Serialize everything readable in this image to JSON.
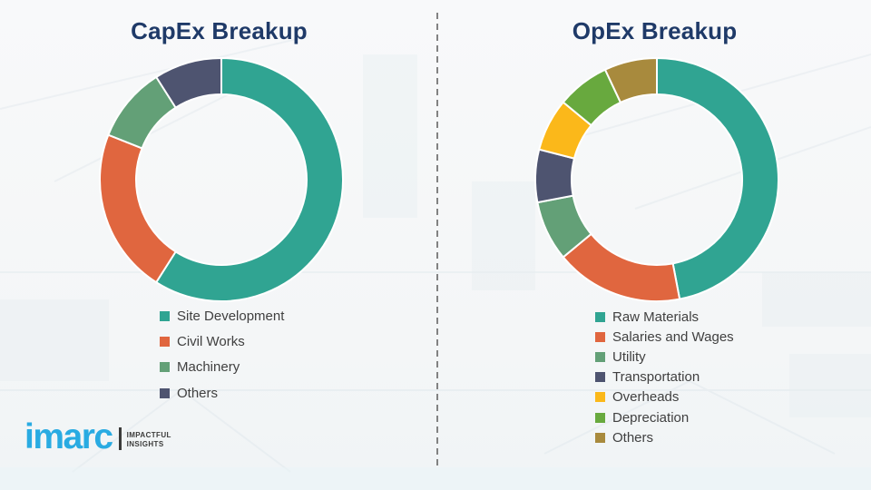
{
  "chart_data": [
    {
      "type": "pie",
      "subtype": "donut",
      "title": "CapEx Breakup",
      "categories": [
        "Site Development",
        "Civil Works",
        "Machinery",
        "Others"
      ],
      "values": [
        59,
        22,
        10,
        9
      ],
      "colors": [
        "#30A492",
        "#E0663F",
        "#63A077",
        "#4E5470"
      ],
      "legend_position": "bottom-left",
      "data_labels_shown": false
    },
    {
      "type": "pie",
      "subtype": "donut",
      "title": "OpEx Breakup",
      "categories": [
        "Raw Materials",
        "Salaries and Wages",
        "Utility",
        "Transportation",
        "Overheads",
        "Depreciation",
        "Others"
      ],
      "values": [
        47,
        17,
        8,
        7,
        7,
        7,
        7
      ],
      "colors": [
        "#30A492",
        "#E0663F",
        "#63A077",
        "#4E5470",
        "#FBB81A",
        "#68A93E",
        "#A88A3D"
      ],
      "legend_position": "bottom-left",
      "data_labels_shown": false
    }
  ],
  "logo": {
    "brand": "imarc",
    "tagline_line1": "IMPACTFUL",
    "tagline_line2": "INSIGHTS",
    "brand_color": "#29ABE2"
  },
  "theme": {
    "title_color": "#1F3A68",
    "legend_text_color": "#404040",
    "divider_color": "#6E6E6E",
    "segment_gap_color": "#FFFFFF",
    "background_color": "#F6F7F8"
  }
}
